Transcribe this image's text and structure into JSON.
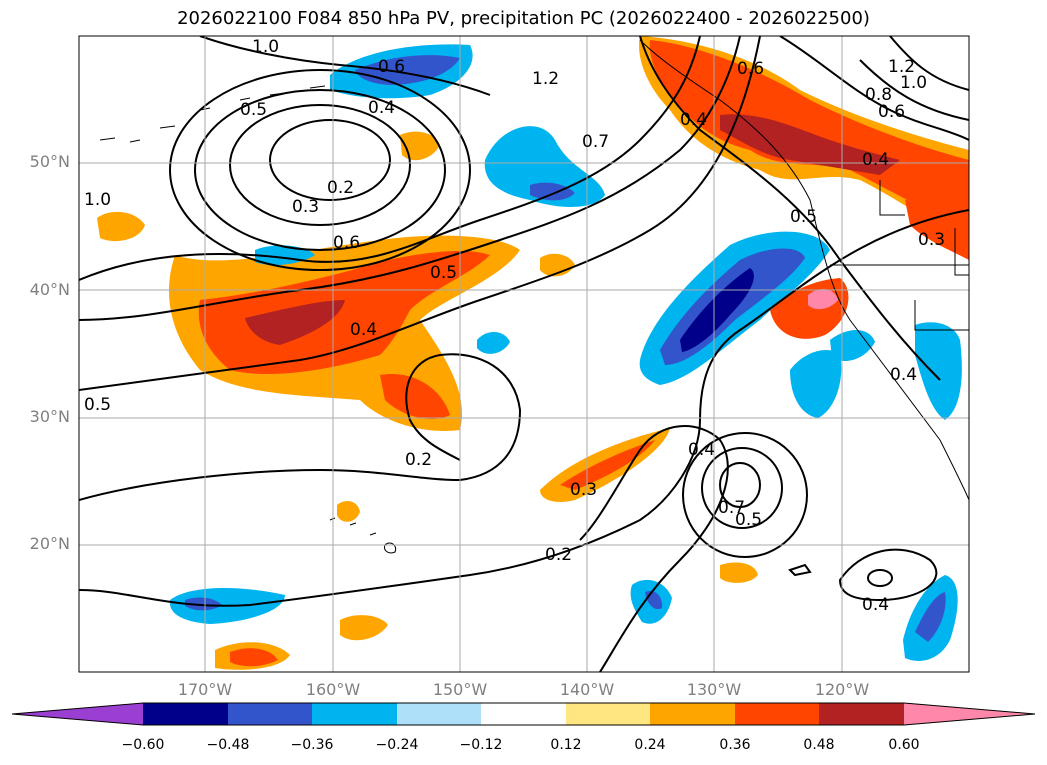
{
  "title": "2026022100 F084 850 hPa PV, precipitation PC (2026022400 - 2026022500)",
  "lat_labels": [
    "50°N",
    "40°N",
    "30°N",
    "20°N"
  ],
  "lon_labels": [
    "170°W",
    "160°W",
    "150°W",
    "140°W",
    "130°W",
    "120°W"
  ],
  "colorbar": {
    "ticks": [
      "−0.60",
      "−0.48",
      "−0.36",
      "−0.24",
      "−0.12",
      "0.12",
      "0.24",
      "0.36",
      "0.48",
      "0.60"
    ],
    "colors": [
      "#9a3fd1",
      "#00008b",
      "#3355cc",
      "#00b4f0",
      "#aee0fa",
      "#ffffff",
      "#ffe680",
      "#ffa500",
      "#ff4500",
      "#b22222",
      "#ff88aa"
    ]
  },
  "contour_labels": [
    "1.0",
    "0.6",
    "1.2",
    "0.5",
    "0.4",
    "0.2",
    "0.3",
    "0.6",
    "0.5",
    "0.4",
    "1.0",
    "0.5",
    "0.2",
    "0.3",
    "0.2",
    "0.7",
    "0.4",
    "0.6",
    "1.0",
    "1.2",
    "0.8",
    "0.6",
    "0.4",
    "0.5",
    "0.3",
    "0.4",
    "0.4",
    "0.7",
    "0.5",
    "0.4"
  ]
}
